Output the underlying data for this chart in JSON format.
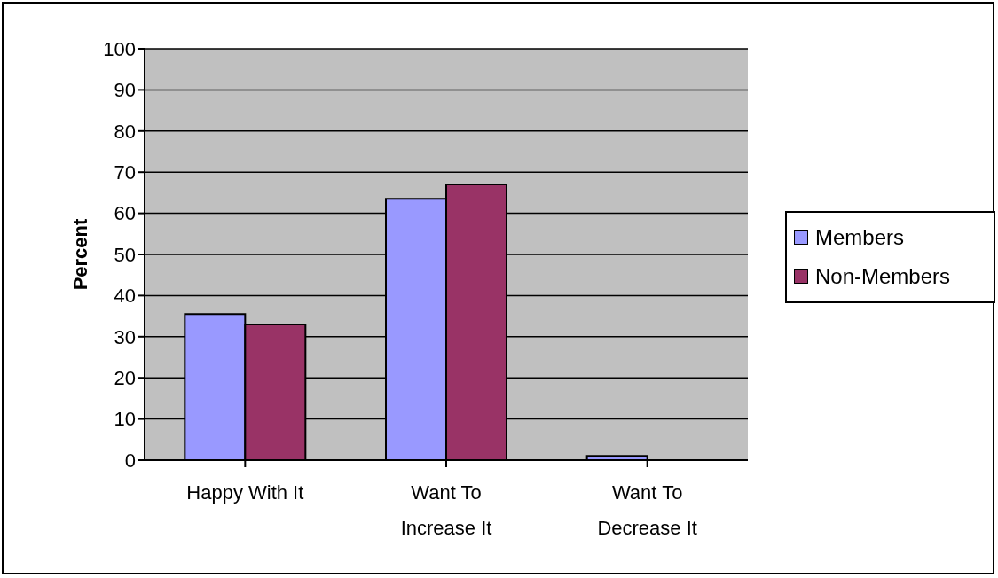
{
  "chart_data": {
    "type": "bar",
    "ylabel": "Percent",
    "categories": [
      "Happy With It",
      "Want To Increase It",
      "Want To Decrease It"
    ],
    "series": [
      {
        "name": "Members",
        "color": "#9999ff",
        "values": [
          35.5,
          63.5,
          1
        ]
      },
      {
        "name": "Non-Members",
        "color": "#993366",
        "values": [
          33,
          67,
          0
        ]
      }
    ],
    "ylim": [
      0,
      100
    ],
    "yticks": [
      0,
      10,
      20,
      30,
      40,
      50,
      60,
      70,
      80,
      90,
      100
    ],
    "grid": "y",
    "legend": "right"
  }
}
